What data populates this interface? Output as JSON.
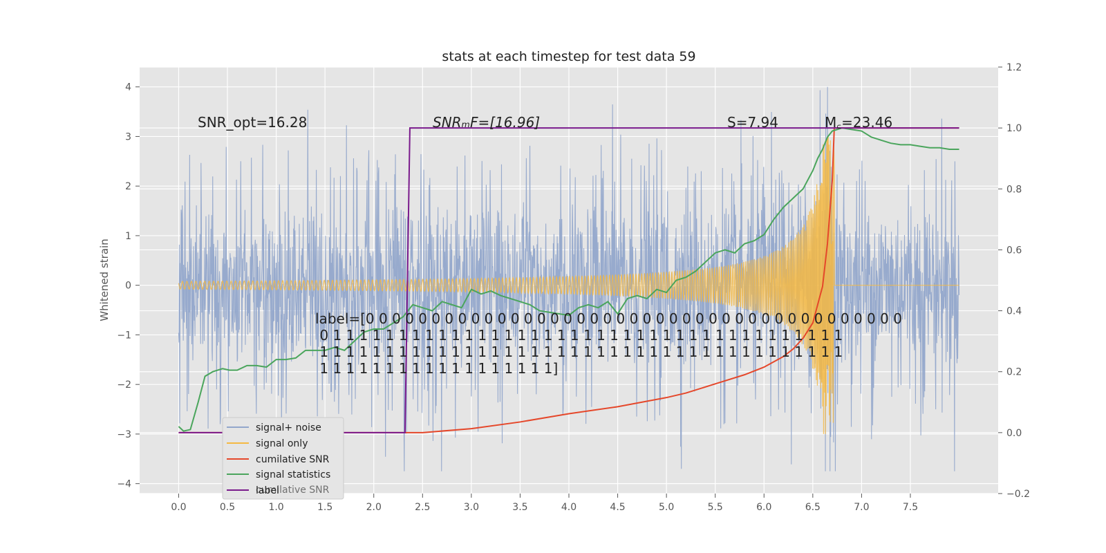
{
  "chart_data": {
    "type": "line",
    "title": "stats at each timestep for test data 59",
    "ylabel": "Whitened strain",
    "xlim": [
      -0.4,
      8.4
    ],
    "ylim": [
      -4.2,
      4.4
    ],
    "y2lim": [
      -0.2,
      1.2
    ],
    "x_ticks": [
      0.0,
      0.5,
      1.0,
      1.5,
      2.0,
      2.5,
      3.0,
      3.5,
      4.0,
      4.5,
      5.0,
      5.5,
      6.0,
      6.5,
      7.0,
      7.5
    ],
    "x_tick_labels": [
      "0.0",
      "0.5",
      "1.0",
      "1.5",
      "2.0",
      "2.5",
      "3.0",
      "3.5",
      "4.0",
      "4.5",
      "5.0",
      "5.5",
      "6.0",
      "6.5",
      "7.0",
      "7.5"
    ],
    "y_ticks": [
      -4,
      -3,
      -2,
      -1,
      0,
      1,
      2,
      3,
      4
    ],
    "y_tick_labels": [
      "−4",
      "−3",
      "−2",
      "−1",
      "0",
      "1",
      "2",
      "3",
      "4"
    ],
    "y2_ticks": [
      -0.2,
      0.0,
      0.2,
      0.4,
      0.6,
      0.8,
      1.0,
      1.2
    ],
    "y2_tick_labels": [
      "−0.2",
      "0.0",
      "0.2",
      "0.4",
      "0.6",
      "0.8",
      "1.0",
      "1.2"
    ],
    "grid": true,
    "legend_position": "lower-left",
    "annotations": {
      "snr_opt": "SNR_opt=16.28",
      "snr_mf": "SNRₘF=[16.96]",
      "s_stat": "S=7.94",
      "mc": "M꜀=23.46",
      "label_lines": [
        "label=[0 0 0 0 0 0 0 0 0 0 0 0 0 0 0 0 0 0 0 0 0 0 0 0 0 0 0 0 0 0 0 0 0 0 0 0 0 0 0 0 0",
        " 0 1 1 1 1 1 1 1 1 1 1 1 1 1 1 1 1 1 1 1 1 1 1 1 1 1 1 1 1 1 1 1 1 1 1 1 1 1 1 1",
        " 1 1 1 1 1 1 1 1 1 1 1 1 1 1 1 1 1 1 1 1 1 1 1 1 1 1 1 1 1 1 1 1 1 1 1 1 1 1 1 1",
        " 1 1 1 1 1 1 1 1 1 1 1 1 1 1 1 1 1 1]"
      ]
    },
    "series": [
      {
        "name": "signal+ noise",
        "color": "#92a6cb",
        "axis": "left",
        "x_range": [
          0.0,
          8.0
        ],
        "y_range": [
          -3.8,
          4.0
        ],
        "description_points": []
      },
      {
        "name": "signal only",
        "color": "#f5b942",
        "axis": "left",
        "x_range": [
          0.0,
          8.0
        ],
        "chirp_end": 6.72,
        "max_amplitude": 3.0
      },
      {
        "name": "cumilative SNR",
        "color": "#e5472a",
        "axis": "right",
        "x": [
          0.0,
          2.35,
          2.5,
          3.0,
          3.5,
          4.0,
          4.5,
          5.0,
          5.2,
          5.5,
          5.8,
          6.0,
          6.2,
          6.3,
          6.4,
          6.5,
          6.6,
          6.65,
          6.7,
          6.72,
          6.75,
          8.0
        ],
        "y": [
          0.0,
          0.0,
          0.0,
          0.013,
          0.035,
          0.062,
          0.085,
          0.115,
          0.13,
          0.16,
          0.19,
          0.215,
          0.25,
          0.275,
          0.31,
          0.36,
          0.48,
          0.62,
          0.83,
          1.0,
          1.0,
          1.0
        ]
      },
      {
        "name": "signal statistics",
        "color": "#4aa55c",
        "axis": "right",
        "x": [
          0.0,
          0.05,
          0.12,
          0.2,
          0.27,
          0.35,
          0.45,
          0.52,
          0.6,
          0.7,
          0.8,
          0.9,
          1.0,
          1.1,
          1.2,
          1.3,
          1.4,
          1.5,
          1.6,
          1.7,
          1.8,
          1.9,
          2.0,
          2.1,
          2.2,
          2.3,
          2.4,
          2.5,
          2.6,
          2.7,
          2.8,
          2.9,
          3.0,
          3.1,
          3.2,
          3.3,
          3.4,
          3.5,
          3.6,
          3.7,
          3.8,
          3.9,
          4.0,
          4.1,
          4.2,
          4.3,
          4.4,
          4.5,
          4.6,
          4.7,
          4.8,
          4.9,
          5.0,
          5.1,
          5.2,
          5.3,
          5.4,
          5.5,
          5.6,
          5.7,
          5.8,
          5.9,
          6.0,
          6.1,
          6.2,
          6.3,
          6.4,
          6.5,
          6.55,
          6.6,
          6.65,
          6.7,
          6.8,
          6.9,
          7.0,
          7.1,
          7.2,
          7.3,
          7.4,
          7.5,
          7.6,
          7.7,
          7.8,
          7.9,
          8.0
        ],
        "y": [
          0.02,
          0.005,
          0.01,
          0.1,
          0.185,
          0.2,
          0.21,
          0.205,
          0.205,
          0.22,
          0.22,
          0.215,
          0.24,
          0.24,
          0.245,
          0.27,
          0.27,
          0.27,
          0.28,
          0.27,
          0.3,
          0.33,
          0.34,
          0.34,
          0.36,
          0.38,
          0.42,
          0.41,
          0.4,
          0.43,
          0.42,
          0.41,
          0.47,
          0.455,
          0.465,
          0.45,
          0.44,
          0.43,
          0.42,
          0.4,
          0.395,
          0.39,
          0.385,
          0.41,
          0.42,
          0.41,
          0.43,
          0.39,
          0.44,
          0.45,
          0.44,
          0.47,
          0.46,
          0.5,
          0.51,
          0.53,
          0.56,
          0.59,
          0.6,
          0.59,
          0.62,
          0.63,
          0.65,
          0.7,
          0.74,
          0.77,
          0.8,
          0.86,
          0.9,
          0.93,
          0.97,
          0.99,
          1.0,
          0.995,
          0.99,
          0.97,
          0.96,
          0.95,
          0.945,
          0.945,
          0.94,
          0.935,
          0.935,
          0.93,
          0.93
        ]
      },
      {
        "name": "label",
        "color": "#7a1a8c",
        "axis": "right",
        "x": [
          0.0,
          2.32,
          2.37,
          8.0
        ],
        "y": [
          0.0,
          0.0,
          1.0,
          1.0
        ]
      }
    ],
    "legend_ghost_text": "cumilative SNR"
  },
  "colors": {
    "plot_background": "#e5e5e5",
    "grid": "#ffffff",
    "text": "#222222",
    "tick_text": "#555555"
  }
}
